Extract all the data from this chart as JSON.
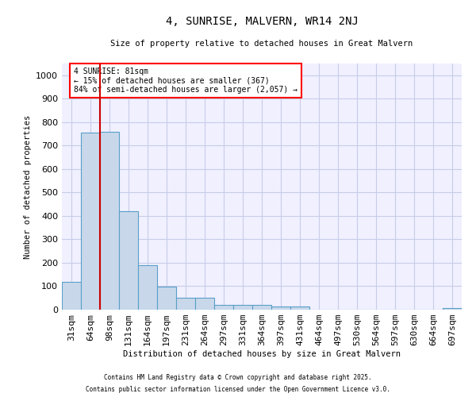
{
  "title": "4, SUNRISE, MALVERN, WR14 2NJ",
  "subtitle": "Size of property relative to detached houses in Great Malvern",
  "xlabel": "Distribution of detached houses by size in Great Malvern",
  "ylabel": "Number of detached properties",
  "categories": [
    "31sqm",
    "64sqm",
    "98sqm",
    "131sqm",
    "164sqm",
    "197sqm",
    "231sqm",
    "264sqm",
    "297sqm",
    "331sqm",
    "364sqm",
    "397sqm",
    "431sqm",
    "464sqm",
    "497sqm",
    "530sqm",
    "564sqm",
    "597sqm",
    "630sqm",
    "664sqm",
    "697sqm"
  ],
  "values": [
    117,
    755,
    760,
    420,
    190,
    97,
    50,
    50,
    22,
    22,
    22,
    15,
    15,
    0,
    0,
    0,
    0,
    0,
    0,
    0,
    7
  ],
  "bar_color": "#c8d8ea",
  "bar_edge_color": "#5a9fc8",
  "vline_color": "#cc0000",
  "vline_pos": 1.5,
  "annotation_text": "4 SUNRISE: 81sqm\n← 15% of detached houses are smaller (367)\n84% of semi-detached houses are larger (2,057) →",
  "ylim": [
    0,
    1050
  ],
  "yticks": [
    0,
    100,
    200,
    300,
    400,
    500,
    600,
    700,
    800,
    900,
    1000
  ],
  "grid_color": "#c8cce8",
  "bg_color": "#f0f0ff",
  "footer1": "Contains HM Land Registry data © Crown copyright and database right 2025.",
  "footer2": "Contains public sector information licensed under the Open Government Licence v3.0."
}
